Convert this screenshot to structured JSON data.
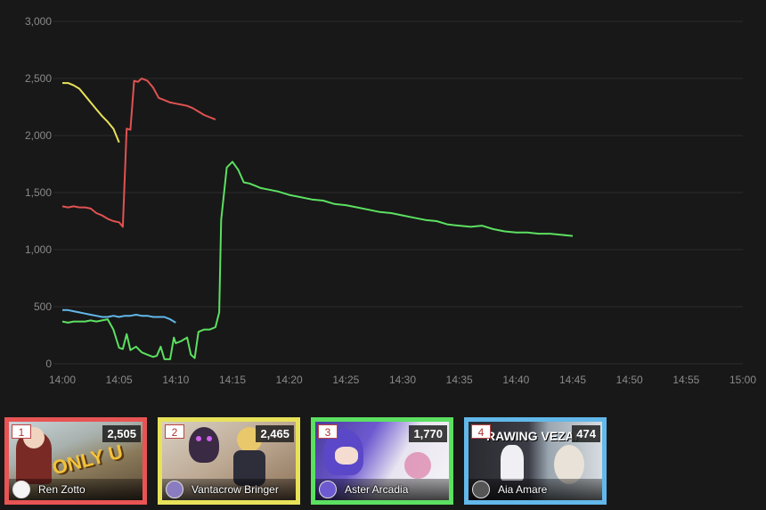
{
  "chart_data": {
    "type": "line",
    "x_ticks": [
      "14:00",
      "14:05",
      "14:10",
      "14:15",
      "14:20",
      "14:25",
      "14:30",
      "14:35",
      "14:40",
      "14:45",
      "14:50",
      "14:55",
      "15:00"
    ],
    "y_ticks": [
      "0",
      "500",
      "1,000",
      "1,500",
      "2,000",
      "2,500",
      "3,000"
    ],
    "xlim": [
      "14:00",
      "15:00"
    ],
    "ylim": [
      0,
      3000
    ],
    "grid": "horizontal",
    "series": [
      {
        "color": "#e8e25a",
        "points": [
          [
            "14:00",
            2460
          ],
          [
            "14:00:30",
            2460
          ],
          [
            "14:01",
            2440
          ],
          [
            "14:01:30",
            2410
          ],
          [
            "14:02",
            2350
          ],
          [
            "14:02:30",
            2290
          ],
          [
            "14:03",
            2230
          ],
          [
            "14:03:30",
            2170
          ],
          [
            "14:04",
            2120
          ],
          [
            "14:04:30",
            2060
          ],
          [
            "14:05",
            1940
          ]
        ]
      },
      {
        "color": "#e05252",
        "points": [
          [
            "14:00",
            1380
          ],
          [
            "14:00:30",
            1370
          ],
          [
            "14:01",
            1380
          ],
          [
            "14:01:30",
            1370
          ],
          [
            "14:02",
            1370
          ],
          [
            "14:02:30",
            1360
          ],
          [
            "14:03",
            1320
          ],
          [
            "14:03:30",
            1300
          ],
          [
            "14:04",
            1270
          ],
          [
            "14:04:30",
            1250
          ],
          [
            "14:05",
            1240
          ],
          [
            "14:05:20",
            1200
          ],
          [
            "14:05:40",
            2060
          ],
          [
            "14:06",
            2050
          ],
          [
            "14:06:20",
            2480
          ],
          [
            "14:06:40",
            2470
          ],
          [
            "14:07",
            2500
          ],
          [
            "14:07:30",
            2480
          ],
          [
            "14:08",
            2420
          ],
          [
            "14:08:30",
            2330
          ],
          [
            "14:09",
            2310
          ],
          [
            "14:09:30",
            2290
          ],
          [
            "14:10",
            2280
          ],
          [
            "14:10:30",
            2270
          ],
          [
            "14:11",
            2260
          ],
          [
            "14:11:30",
            2240
          ],
          [
            "14:12",
            2210
          ],
          [
            "14:12:30",
            2180
          ],
          [
            "14:13",
            2160
          ],
          [
            "14:13:30",
            2140
          ]
        ]
      },
      {
        "color": "#62b8ea",
        "points": [
          [
            "14:00",
            470
          ],
          [
            "14:00:30",
            470
          ],
          [
            "14:01",
            460
          ],
          [
            "14:01:30",
            450
          ],
          [
            "14:02",
            440
          ],
          [
            "14:02:30",
            430
          ],
          [
            "14:03",
            420
          ],
          [
            "14:03:30",
            410
          ],
          [
            "14:04",
            410
          ],
          [
            "14:04:30",
            420
          ],
          [
            "14:05",
            410
          ],
          [
            "14:05:30",
            420
          ],
          [
            "14:06",
            420
          ],
          [
            "14:06:30",
            430
          ],
          [
            "14:07",
            420
          ],
          [
            "14:07:30",
            420
          ],
          [
            "14:08",
            410
          ],
          [
            "14:08:30",
            410
          ],
          [
            "14:09",
            410
          ],
          [
            "14:09:30",
            390
          ],
          [
            "14:10",
            360
          ]
        ]
      },
      {
        "color": "#5ce061",
        "points": [
          [
            "14:00",
            370
          ],
          [
            "14:00:30",
            360
          ],
          [
            "14:01",
            370
          ],
          [
            "14:02",
            370
          ],
          [
            "14:02:30",
            380
          ],
          [
            "14:03",
            370
          ],
          [
            "14:03:30",
            380
          ],
          [
            "14:04",
            390
          ],
          [
            "14:04:30",
            300
          ],
          [
            "14:05",
            140
          ],
          [
            "14:05:20",
            130
          ],
          [
            "14:05:40",
            260
          ],
          [
            "14:06",
            120
          ],
          [
            "14:06:30",
            150
          ],
          [
            "14:07",
            100
          ],
          [
            "14:07:30",
            80
          ],
          [
            "14:08",
            60
          ],
          [
            "14:08:20",
            70
          ],
          [
            "14:08:40",
            150
          ],
          [
            "14:09",
            40
          ],
          [
            "14:09:30",
            40
          ],
          [
            "14:09:50",
            230
          ],
          [
            "14:10",
            180
          ],
          [
            "14:10:30",
            200
          ],
          [
            "14:11",
            230
          ],
          [
            "14:11:20",
            80
          ],
          [
            "14:11:40",
            50
          ],
          [
            "14:12",
            280
          ],
          [
            "14:12:30",
            300
          ],
          [
            "14:13",
            300
          ],
          [
            "14:13:30",
            320
          ],
          [
            "14:13:50",
            450
          ],
          [
            "14:14",
            1260
          ],
          [
            "14:14:30",
            1720
          ],
          [
            "14:15",
            1770
          ],
          [
            "14:15:30",
            1700
          ],
          [
            "14:16",
            1590
          ],
          [
            "14:16:30",
            1580
          ],
          [
            "14:17",
            1560
          ],
          [
            "14:17:30",
            1540
          ],
          [
            "14:18",
            1530
          ],
          [
            "14:19",
            1510
          ],
          [
            "14:20",
            1480
          ],
          [
            "14:21",
            1460
          ],
          [
            "14:22",
            1440
          ],
          [
            "14:23",
            1430
          ],
          [
            "14:24",
            1400
          ],
          [
            "14:25",
            1390
          ],
          [
            "14:26",
            1370
          ],
          [
            "14:27",
            1350
          ],
          [
            "14:28",
            1330
          ],
          [
            "14:29",
            1320
          ],
          [
            "14:30",
            1300
          ],
          [
            "14:31",
            1280
          ],
          [
            "14:32",
            1260
          ],
          [
            "14:33",
            1250
          ],
          [
            "14:34",
            1220
          ],
          [
            "14:35",
            1210
          ],
          [
            "14:36",
            1200
          ],
          [
            "14:37",
            1210
          ],
          [
            "14:38",
            1180
          ],
          [
            "14:39",
            1160
          ],
          [
            "14:40",
            1150
          ],
          [
            "14:41",
            1150
          ],
          [
            "14:42",
            1140
          ],
          [
            "14:43",
            1140
          ],
          [
            "14:44",
            1130
          ],
          [
            "14:45",
            1120
          ]
        ]
      }
    ]
  },
  "cards": [
    {
      "rank": "1",
      "count": "2,505",
      "name": "Ren Zotto",
      "border": "#e85454",
      "thumb_text": "ONLY U"
    },
    {
      "rank": "2",
      "count": "2,465",
      "name": "Vantacrow Bringer",
      "border": "#e8e25a",
      "thumb_text": ""
    },
    {
      "rank": "3",
      "count": "1,770",
      "name": "Aster Arcadia",
      "border": "#5ce061",
      "thumb_text": ""
    },
    {
      "rank": "4",
      "count": "474",
      "name": "Aia Amare",
      "border": "#62b8ea",
      "thumb_text": "RAWING VEZAI"
    }
  ]
}
